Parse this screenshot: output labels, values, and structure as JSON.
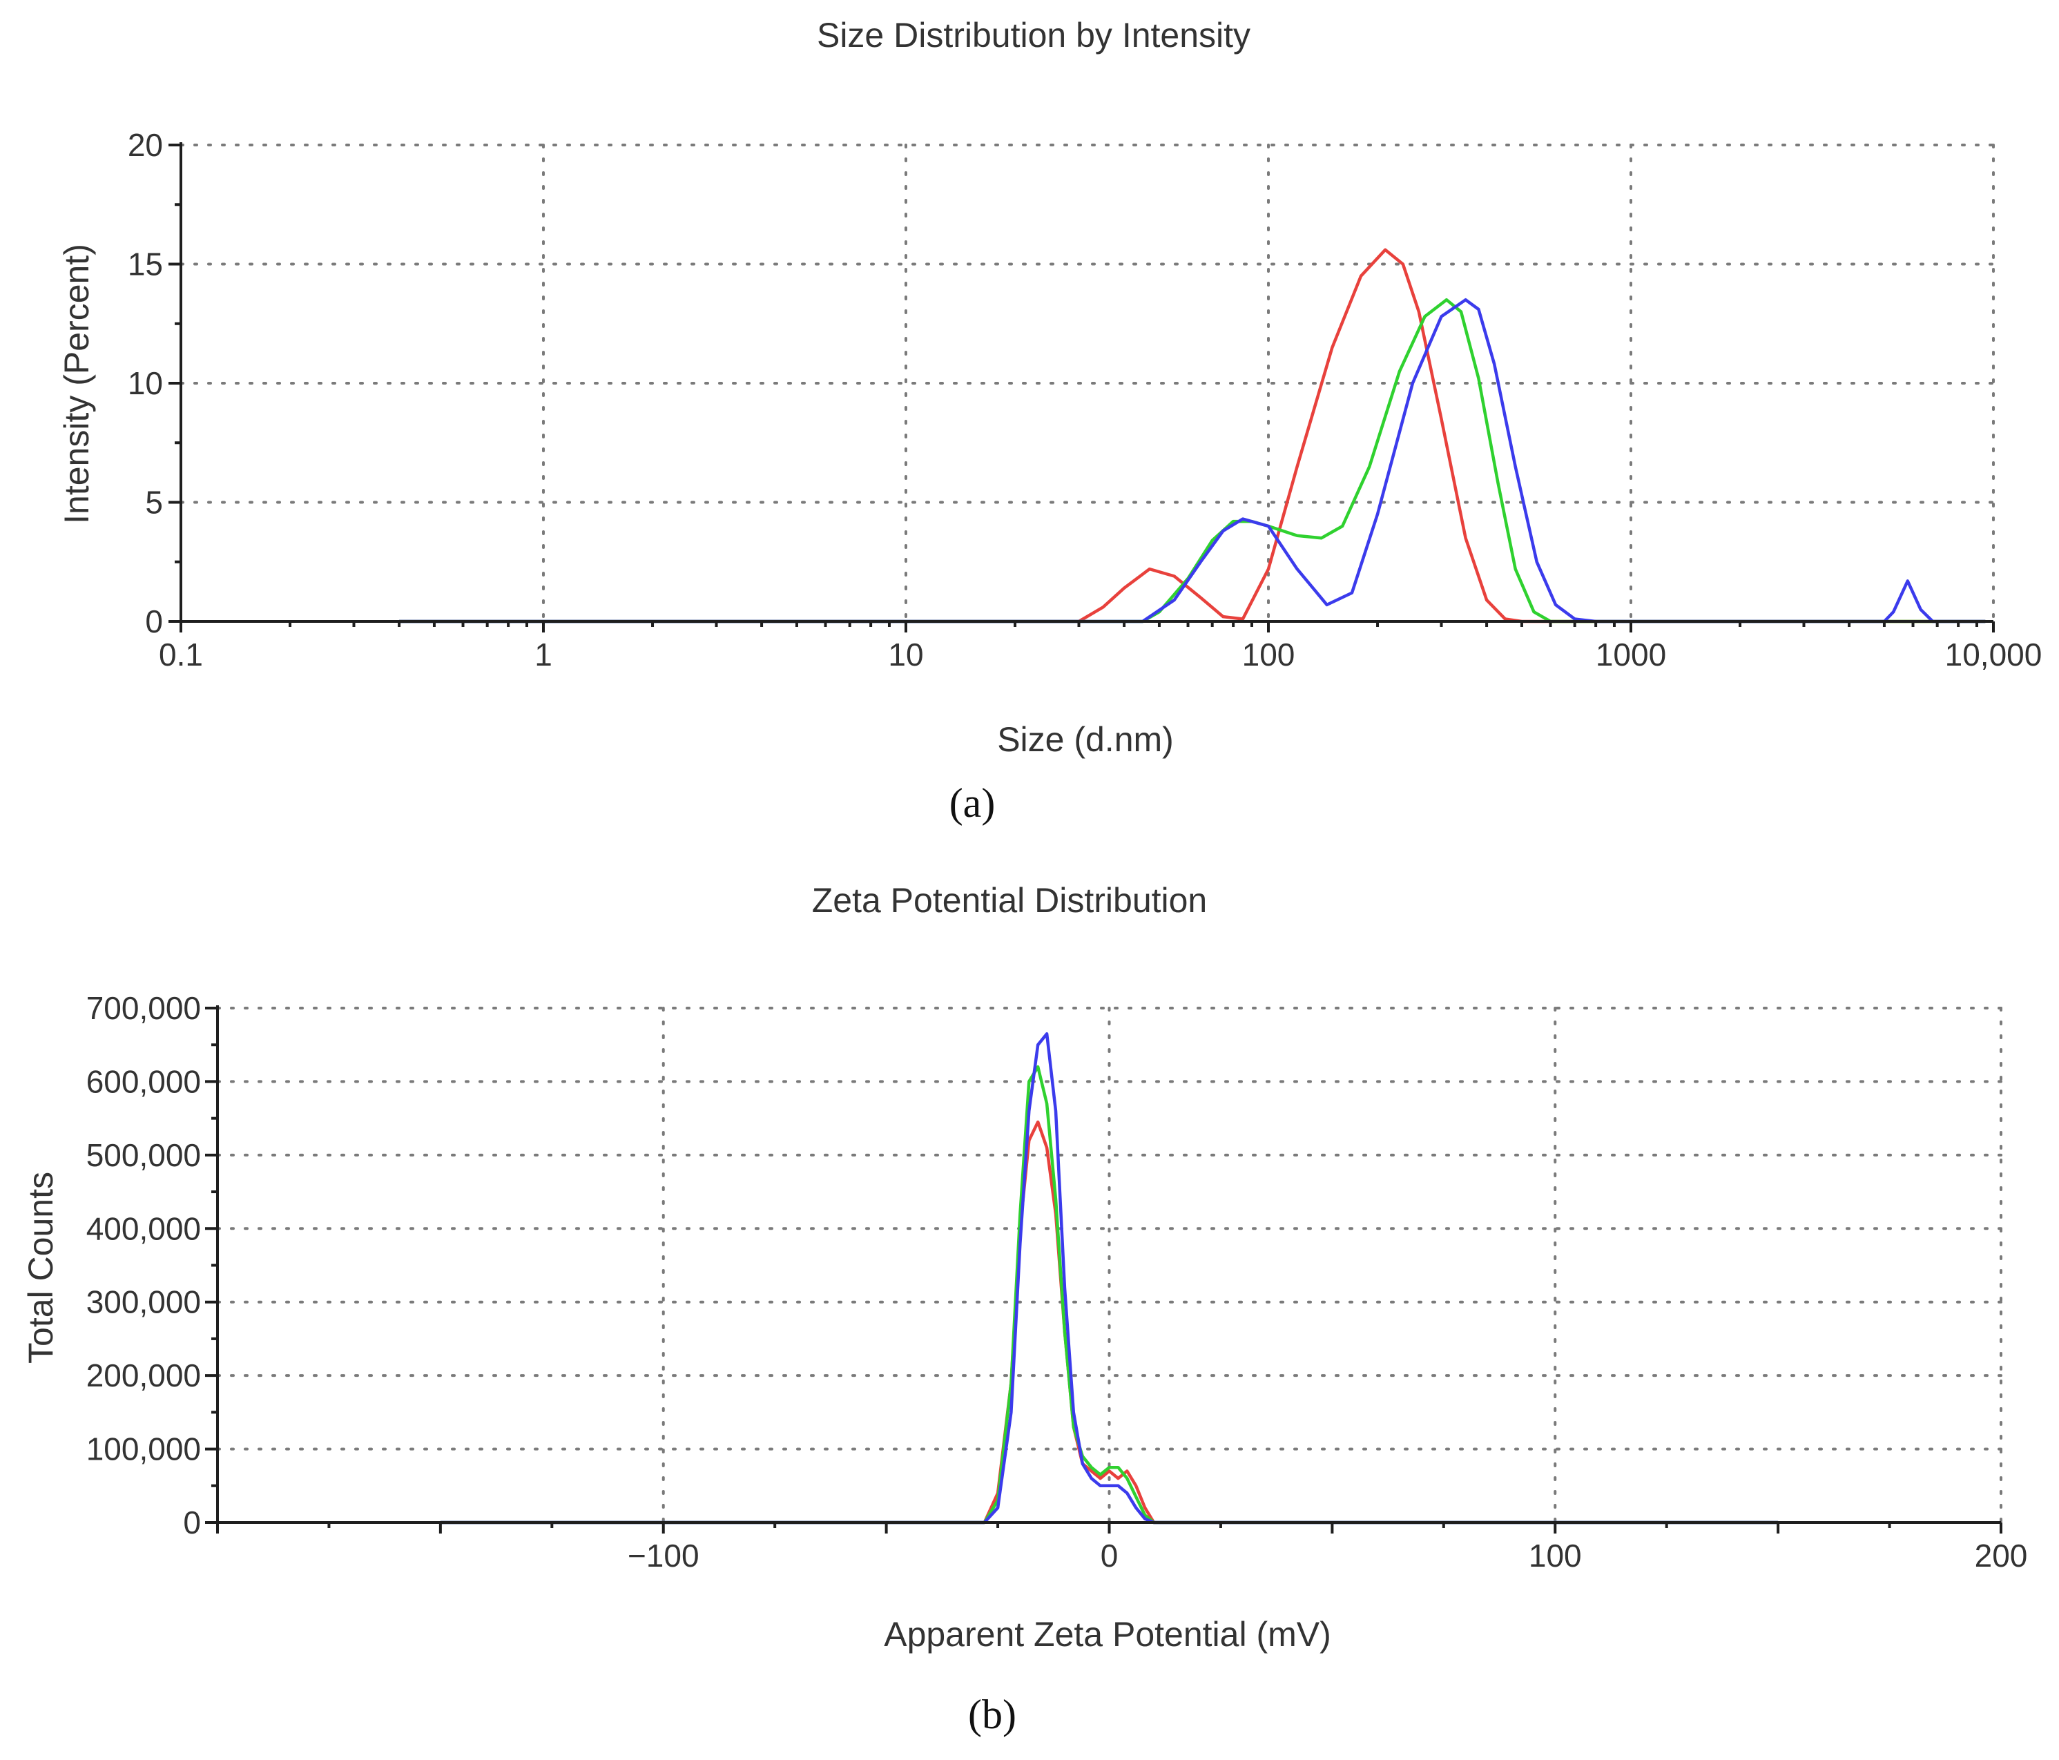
{
  "colors": {
    "red": "#e8413c",
    "green": "#2fd12f",
    "blue": "#3b3bec",
    "axis": "#1e1e1e",
    "grid": "#7a7a7a"
  },
  "chart_data": [
    {
      "id": "size",
      "type": "line",
      "caption": "(a)",
      "title": "Size Distribution by Intensity",
      "xlabel": "Size (d.nm)",
      "ylabel": "Intensity (Percent)",
      "xscale": "log",
      "xlim": [
        0.1,
        10000
      ],
      "ylim": [
        0,
        20
      ],
      "xticks": [
        0.1,
        1,
        10,
        100,
        1000,
        10000
      ],
      "xtick_labels": [
        "0.1",
        "1",
        "10",
        "100",
        "1000",
        "10,000"
      ],
      "yticks": [
        0,
        5,
        10,
        15,
        20
      ],
      "ytick_labels": [
        "0",
        "5",
        "10",
        "15",
        "20"
      ],
      "grid": true,
      "series": [
        {
          "name": "red",
          "color": "#e8413c",
          "x": [
            0.4,
            5,
            20,
            30,
            35,
            40,
            47,
            55,
            65,
            75,
            85,
            100,
            120,
            150,
            180,
            210,
            235,
            260,
            300,
            350,
            400,
            450,
            500,
            800,
            9500
          ],
          "y": [
            0,
            0,
            0,
            0,
            0.6,
            1.4,
            2.2,
            1.9,
            1.0,
            0.2,
            0.1,
            2.2,
            6.5,
            11.5,
            14.5,
            15.6,
            15.0,
            13.0,
            8.5,
            3.5,
            0.9,
            0.1,
            0,
            0,
            0
          ]
        },
        {
          "name": "green",
          "color": "#2fd12f",
          "x": [
            0.4,
            20,
            45,
            50,
            60,
            70,
            80,
            90,
            100,
            120,
            140,
            160,
            190,
            230,
            270,
            310,
            340,
            380,
            430,
            480,
            540,
            600,
            650,
            1000,
            9500
          ],
          "y": [
            0,
            0,
            0,
            0.4,
            1.8,
            3.4,
            4.2,
            4.2,
            4.0,
            3.6,
            3.5,
            4.0,
            6.5,
            10.5,
            12.8,
            13.5,
            13.0,
            10.2,
            5.8,
            2.2,
            0.4,
            0,
            0,
            0,
            0
          ]
        },
        {
          "name": "blue",
          "color": "#3b3bec",
          "x": [
            0.4,
            20,
            45,
            55,
            65,
            75,
            85,
            100,
            120,
            145,
            170,
            200,
            250,
            300,
            350,
            380,
            420,
            480,
            550,
            620,
            700,
            800,
            900,
            5000,
            5300,
            5800,
            6300,
            6800,
            9500
          ],
          "y": [
            0,
            0,
            0,
            0.9,
            2.5,
            3.8,
            4.3,
            4.0,
            2.2,
            0.7,
            1.2,
            4.5,
            10.0,
            12.8,
            13.5,
            13.1,
            10.8,
            6.5,
            2.5,
            0.7,
            0.1,
            0,
            0,
            0,
            0.4,
            1.7,
            0.5,
            0,
            0
          ]
        }
      ]
    },
    {
      "id": "zeta",
      "type": "line",
      "caption": "(b)",
      "title": "Zeta Potential Distribution",
      "xlabel": "Apparent Zeta Potential (mV)",
      "ylabel": "Total Counts",
      "xscale": "linear",
      "xlim": [
        -200,
        200
      ],
      "ylim": [
        0,
        700000
      ],
      "xticks": [
        -100,
        0,
        100,
        200
      ],
      "xtick_labels": [
        "−100",
        "0",
        "100",
        "200"
      ],
      "yticks": [
        0,
        100000,
        200000,
        300000,
        400000,
        500000,
        600000,
        700000
      ],
      "ytick_labels": [
        "0",
        "100,000",
        "200,000",
        "300,000",
        "400,000",
        "500,000",
        "600,000",
        "700,000"
      ],
      "grid": true,
      "series": [
        {
          "name": "red",
          "color": "#e8413c",
          "x": [
            -150,
            -28,
            -25,
            -22,
            -20,
            -18,
            -16,
            -14,
            -12,
            -10,
            -8,
            -6,
            -4,
            -2,
            0,
            2,
            4,
            6,
            8,
            10,
            150
          ],
          "y": [
            0,
            0,
            40000,
            190000,
            400000,
            520000,
            545000,
            510000,
            420000,
            260000,
            130000,
            80000,
            70000,
            60000,
            70000,
            60000,
            70000,
            50000,
            20000,
            0,
            0
          ]
        },
        {
          "name": "green",
          "color": "#2fd12f",
          "x": [
            -150,
            -28,
            -25,
            -22,
            -20,
            -18,
            -16,
            -14,
            -12,
            -10,
            -8,
            -6,
            -4,
            -2,
            0,
            2,
            4,
            6,
            8,
            10,
            150
          ],
          "y": [
            0,
            0,
            30000,
            190000,
            420000,
            600000,
            620000,
            570000,
            440000,
            260000,
            130000,
            90000,
            75000,
            65000,
            75000,
            75000,
            60000,
            35000,
            10000,
            0,
            0
          ]
        },
        {
          "name": "blue",
          "color": "#3b3bec",
          "x": [
            -150,
            -28,
            -25,
            -22,
            -20,
            -18,
            -16,
            -14,
            -12,
            -10,
            -8,
            -6,
            -4,
            -2,
            0,
            2,
            4,
            6,
            8,
            10,
            150
          ],
          "y": [
            0,
            0,
            20000,
            150000,
            380000,
            560000,
            650000,
            665000,
            560000,
            320000,
            150000,
            80000,
            60000,
            50000,
            50000,
            50000,
            40000,
            20000,
            5000,
            0,
            0
          ]
        }
      ]
    }
  ]
}
